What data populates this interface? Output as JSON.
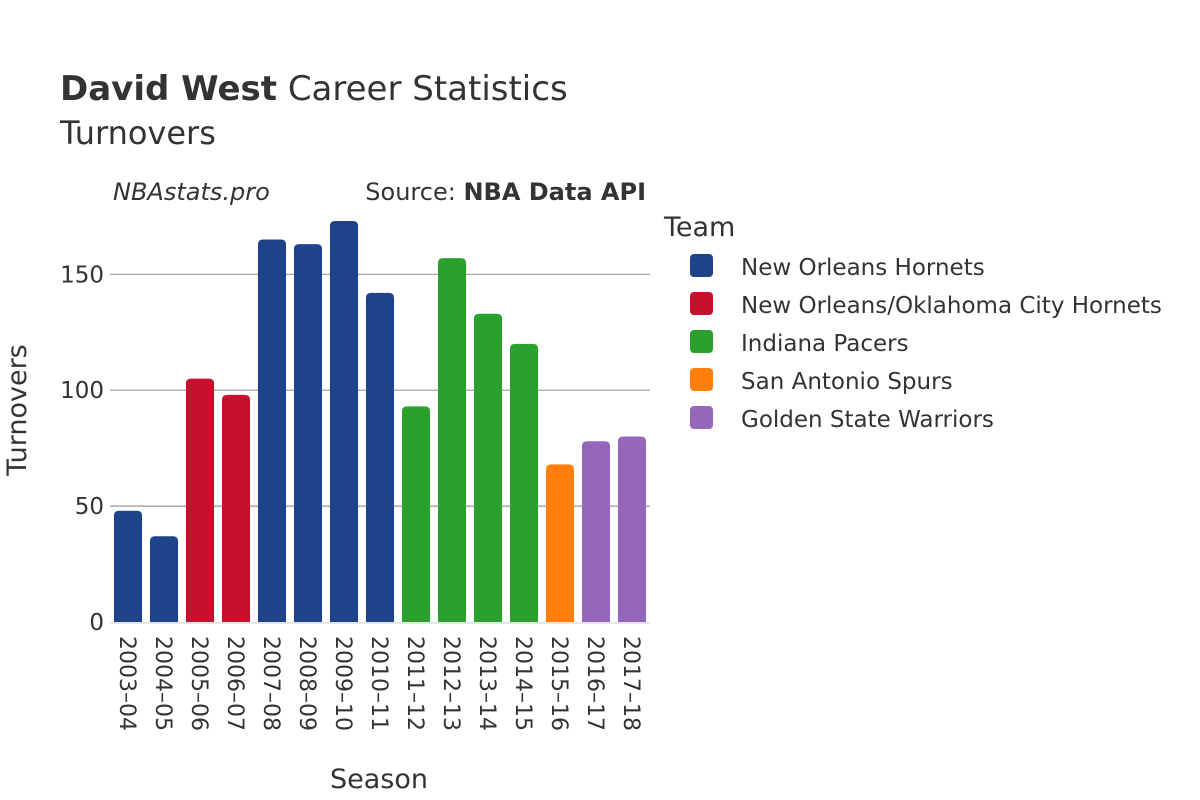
{
  "chart_data": {
    "type": "bar",
    "title_bold": "David West",
    "title_rest": "Career Statistics",
    "subtitle": "Turnovers",
    "watermark": "NBAstats.pro",
    "source_label": "Source:",
    "source_name": "NBA Data API",
    "xlabel": "Season",
    "ylabel": "Turnovers",
    "ylim": [
      0,
      182
    ],
    "yticks": [
      0,
      50,
      100,
      150
    ],
    "legend_title": "Team",
    "legend_position": "right",
    "teams": [
      {
        "name": "New Orleans Hornets",
        "color": "#1f4388"
      },
      {
        "name": "New Orleans/Oklahoma City Hornets",
        "color": "#c8102e"
      },
      {
        "name": "Indiana Pacers",
        "color": "#2ca02c"
      },
      {
        "name": "San Antonio Spurs",
        "color": "#ff7f0e"
      },
      {
        "name": "Golden State Warriors",
        "color": "#9467bd"
      }
    ],
    "categories": [
      "2003–04",
      "2004–05",
      "2005–06",
      "2006–07",
      "2007–08",
      "2008–09",
      "2009–10",
      "2010–11",
      "2011–12",
      "2012–13",
      "2013–14",
      "2014–15",
      "2015–16",
      "2016–17",
      "2017–18"
    ],
    "values": [
      48,
      37,
      105,
      98,
      165,
      163,
      173,
      142,
      93,
      157,
      133,
      120,
      68,
      78,
      80
    ],
    "team_index": [
      0,
      0,
      1,
      1,
      0,
      0,
      0,
      0,
      2,
      2,
      2,
      2,
      3,
      4,
      4
    ]
  }
}
